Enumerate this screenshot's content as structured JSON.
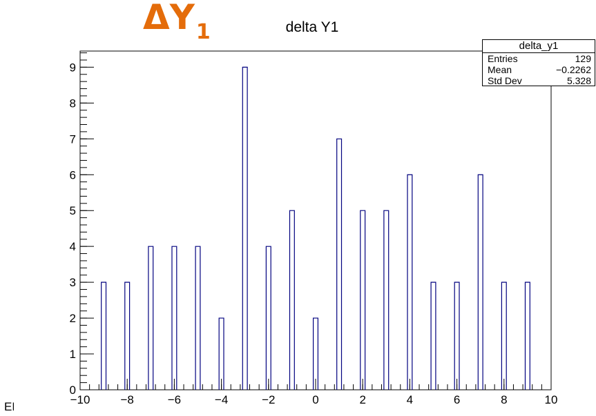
{
  "overlay": {
    "delta_symbol": "ΔY",
    "delta_subscript": "1",
    "color": "#E46C0A",
    "corner_text": "EF"
  },
  "stats": {
    "name": "delta_y1",
    "rows": [
      {
        "label": "Entries",
        "value": "129"
      },
      {
        "label": "Mean",
        "value": "−0.2262"
      },
      {
        "label": "Std Dev",
        "value": "5.328"
      }
    ]
  },
  "chart_data": {
    "type": "bar",
    "title": "delta Y1",
    "xlabel": "",
    "ylabel": "",
    "xlim": [
      -10,
      10
    ],
    "ylim": [
      0,
      9.45
    ],
    "bar_width": 0.2,
    "bar_color": "#00007F",
    "x": [
      -9,
      -8,
      -7,
      -6,
      -5,
      -4,
      -3,
      -2,
      -1,
      0,
      1,
      2,
      3,
      4,
      5,
      6,
      7,
      8,
      9
    ],
    "values": [
      3,
      3,
      4,
      4,
      4,
      2,
      9,
      4,
      5,
      2,
      7,
      5,
      5,
      6,
      3,
      3,
      6,
      3,
      3
    ],
    "x_ticks": [
      -10,
      -8,
      -6,
      -4,
      -2,
      0,
      2,
      4,
      6,
      8,
      10
    ],
    "x_tick_labels": [
      "−10",
      "−8",
      "−6",
      "−4",
      "−2",
      "0",
      "2",
      "4",
      "6",
      "8",
      "10"
    ],
    "y_ticks": [
      0,
      1,
      2,
      3,
      4,
      5,
      6,
      7,
      8,
      9
    ],
    "y_tick_labels": [
      "0",
      "1",
      "2",
      "3",
      "4",
      "5",
      "6",
      "7",
      "8",
      "9"
    ],
    "grid": false,
    "legend": "stats box top-right"
  }
}
